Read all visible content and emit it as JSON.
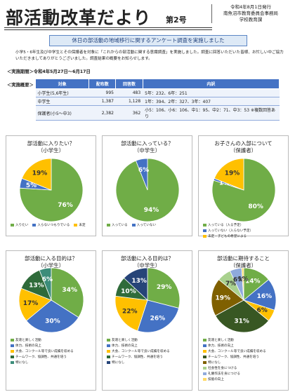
{
  "header": {
    "title": "部活動改革だより",
    "issue": "第2号",
    "date": "令和4年8月1日発行",
    "publisher": "南魚沼市教育委員会事務局",
    "section": "学校教育課"
  },
  "banner": "休日の部活動の地域移行に関するアンケート調査を実施しました",
  "intro": "小学5・6年生及び中学生とその保護者を対象に「これからの部活動に関する意識調査」を実施しました。調査に回答いただいた皆様、お忙しい中ご協力いただきましてありがとうございました。調査結果の概要をお知らせします。",
  "period": "＜実施期間＞令和4年5月27日～6月17日",
  "summary_label": "＜実施概要＞",
  "table": {
    "headers": [
      "対象",
      "配布数",
      "回答数",
      "内訳"
    ],
    "rows": [
      [
        "小学生(5,6年生)",
        "995",
        "483",
        "5年：232、6年：251"
      ],
      [
        "中学生",
        "1,387",
        "1,128",
        "1年：394、2年：327、3年：407"
      ],
      [
        "保護者(小5～中3)",
        "2,382",
        "362",
        "小5：106、小6：106、中1：95、中2：71、中3：53 ※複数回答あり"
      ]
    ]
  },
  "chart_data": [
    {
      "type": "pie",
      "title": "部活動に入りたい？",
      "subtitle": "（小学生）",
      "categories": [
        "入りたい",
        "入らないつもりでいる",
        "未定"
      ],
      "values": [
        76,
        5,
        19
      ],
      "value_labels": [
        "76%",
        "5%",
        "19%"
      ],
      "colors": [
        "#70ad47",
        "#4472c4",
        "#ffc000"
      ]
    },
    {
      "type": "pie",
      "title": "部活動に入っている？",
      "subtitle": "（中学生）",
      "categories": [
        "入っている",
        "入っていない"
      ],
      "values": [
        94,
        6
      ],
      "value_labels": [
        "94%",
        "6%"
      ],
      "colors": [
        "#70ad47",
        "#4472c4"
      ]
    },
    {
      "type": "pie",
      "title": "お子さんの入部について",
      "subtitle": "（保護者）",
      "categories": [
        "入っている（入る予定）",
        "入っていない（入らない予定）",
        "未定・子どもの希望による"
      ],
      "values": [
        80,
        1,
        19
      ],
      "value_labels": [
        "80%",
        "1%",
        "19%"
      ],
      "colors": [
        "#70ad47",
        "#4472c4",
        "#ffc000"
      ]
    },
    {
      "type": "pie",
      "title": "部活動に入る目的は？",
      "subtitle": "（小学生）",
      "categories": [
        "友達と楽しく活動",
        "体力、技術の向上",
        "大会、コンクール等で良い成績を収める",
        "チームワーク、協調性、共通を培う",
        "特になし"
      ],
      "values": [
        34,
        30,
        17,
        13,
        6
      ],
      "value_labels": [
        "34%",
        "30%",
        "17%",
        "13%",
        "6%"
      ],
      "colors": [
        "#70ad47",
        "#4472c4",
        "#ffc000",
        "#2f6b3a",
        "#3c8d7a"
      ]
    },
    {
      "type": "pie",
      "title": "部活動に入る目的は？",
      "subtitle": "（中学生）",
      "categories": [
        "友達と楽しく活動",
        "体力、技術の向上",
        "大会、コンクール等で良い成績を収める",
        "チームワーク、協調性、共通を培う",
        "特になし"
      ],
      "values": [
        29,
        26,
        22,
        10,
        13
      ],
      "value_labels": [
        "29%",
        "26%",
        "22%",
        "10%",
        "13%"
      ],
      "colors": [
        "#70ad47",
        "#4472c4",
        "#ffc000",
        "#2f6b3a",
        "#264478"
      ]
    },
    {
      "type": "pie",
      "title": "部活動に期待すること",
      "subtitle": "（保護者）",
      "categories": [
        "友達と楽しく活動",
        "体力、技術の向上",
        "大会、コンクール等で良い成績を収める",
        "チームワーク、協調性、共通を培う",
        "特になし",
        "社会性を身につける",
        "礼儀作法を身につける",
        "技能の向上"
      ],
      "values": [
        14,
        16,
        6,
        31,
        19,
        7,
        6,
        1
      ],
      "value_labels": [
        "14%",
        "16%",
        "6%",
        "31%",
        "19%",
        "7%",
        "6%",
        "1%"
      ],
      "colors": [
        "#70ad47",
        "#4472c4",
        "#ffc000",
        "#385723",
        "#7f6000",
        "#a9d18e",
        "#8faadc",
        "#ffd966"
      ]
    }
  ]
}
